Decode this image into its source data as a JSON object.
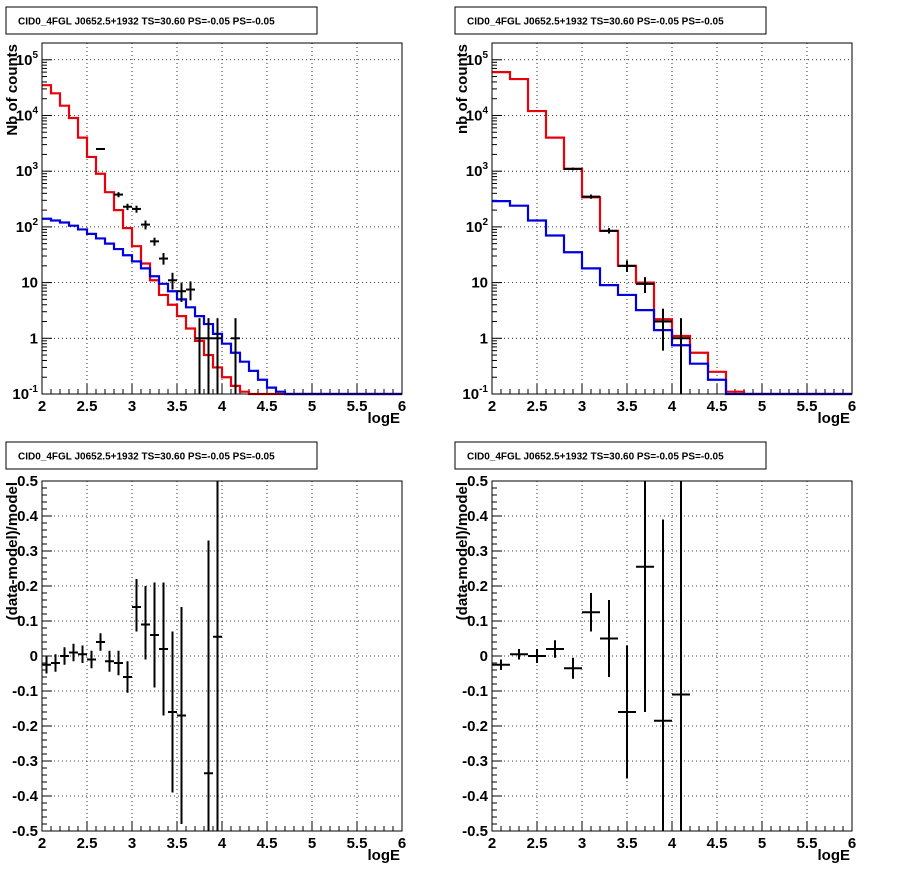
{
  "chart_data": [
    {
      "type": "line",
      "panel": "top-left",
      "title": "CID0_4FGL J0652.5+1932 TS=30.60 PS=-0.05 PS=-0.05",
      "xlabel": "logE",
      "ylabel": "Nb of counts",
      "xlim": [
        2,
        6
      ],
      "ylim": [
        0.1,
        200000
      ],
      "yscale": "log",
      "grid": true,
      "x_ticks": [
        "2",
        "2.5",
        "3",
        "3.5",
        "4",
        "4.5",
        "5",
        "5.5",
        "6"
      ],
      "y_ticks": [
        {
          "value": 0.1,
          "base": "10",
          "exp": "-1"
        },
        {
          "value": 1,
          "base": "1",
          "exp": ""
        },
        {
          "value": 10,
          "base": "10",
          "exp": ""
        },
        {
          "value": 100,
          "base": "10",
          "exp": "2"
        },
        {
          "value": 1000,
          "base": "10",
          "exp": "3"
        },
        {
          "value": 10000,
          "base": "10",
          "exp": "4"
        },
        {
          "value": 100000,
          "base": "10",
          "exp": "5"
        }
      ],
      "bin_edges": [
        2.0,
        2.1,
        2.2,
        2.3,
        2.4,
        2.5,
        2.6,
        2.7,
        2.8,
        2.9,
        3.0,
        3.1,
        3.2,
        3.3,
        3.4,
        3.5,
        3.6,
        3.7,
        3.8,
        3.9,
        4.0,
        4.1,
        4.2,
        4.3,
        4.4,
        4.5,
        4.6,
        4.7,
        4.8,
        4.9,
        5.0,
        5.1,
        5.2,
        5.3,
        5.4,
        5.5,
        5.6,
        5.7,
        5.8,
        5.9,
        6.0
      ],
      "series": [
        {
          "kind": "hist",
          "color": "#e8000b",
          "values": [
            35000,
            25000,
            15000,
            9000,
            4000,
            1800,
            900,
            420,
            200,
            95,
            45,
            22,
            11,
            6,
            4,
            2.5,
            1.5,
            0.9,
            0.5,
            0.3,
            0.2,
            0.14,
            0.11,
            0.1,
            0.1,
            0.1,
            0.1,
            0.1,
            0.1,
            0.1,
            0.1,
            0.1,
            0.1,
            0.1,
            0.1,
            0.1,
            0.1,
            0.1,
            0.1,
            0.1
          ]
        },
        {
          "kind": "hist",
          "color": "#0000e0",
          "values": [
            140,
            130,
            120,
            105,
            90,
            75,
            62,
            50,
            40,
            31,
            24,
            18,
            13,
            9.5,
            7,
            5,
            3.6,
            2.5,
            1.8,
            1.2,
            0.8,
            0.55,
            0.38,
            0.26,
            0.18,
            0.13,
            0.11,
            0.1,
            0.1,
            0.1,
            0.1,
            0.1,
            0.1,
            0.1,
            0.1,
            0.1,
            0.1,
            0.1,
            0.1,
            0.1
          ]
        },
        {
          "kind": "points",
          "color": "#000000",
          "points": [
            {
              "x": 2.65,
              "y": 2500,
              "dx": 0.05,
              "lo": 2400,
              "hi": 2600
            },
            {
              "x": 2.85,
              "y": 380,
              "dx": 0.05,
              "lo": 340,
              "hi": 420
            },
            {
              "x": 2.95,
              "y": 230,
              "dx": 0.05,
              "lo": 200,
              "hi": 260
            },
            {
              "x": 3.05,
              "y": 210,
              "dx": 0.05,
              "lo": 180,
              "hi": 240
            },
            {
              "x": 3.15,
              "y": 110,
              "dx": 0.05,
              "lo": 90,
              "hi": 130
            },
            {
              "x": 3.25,
              "y": 55,
              "dx": 0.05,
              "lo": 46,
              "hi": 64
            },
            {
              "x": 3.35,
              "y": 27,
              "dx": 0.05,
              "lo": 21,
              "hi": 34
            },
            {
              "x": 3.45,
              "y": 11,
              "dx": 0.05,
              "lo": 7.5,
              "hi": 15
            },
            {
              "x": 3.55,
              "y": 7,
              "dx": 0.05,
              "lo": 4.5,
              "hi": 10
            },
            {
              "x": 3.65,
              "y": 7.5,
              "dx": 0.05,
              "lo": 4.8,
              "hi": 10.5
            },
            {
              "x": 3.75,
              "y": 1,
              "dx": 0.05,
              "lo": 0.1,
              "hi": 2.3
            },
            {
              "x": 3.85,
              "y": 1,
              "dx": 0.05,
              "lo": 0.1,
              "hi": 2.3
            },
            {
              "x": 3.95,
              "y": 1,
              "dx": 0.05,
              "lo": 0.1,
              "hi": 2.3
            },
            {
              "x": 4.15,
              "y": 1,
              "dx": 0.05,
              "lo": 0.1,
              "hi": 2.3
            }
          ]
        }
      ]
    },
    {
      "type": "line",
      "panel": "top-right",
      "title": "CID0_4FGL J0652.5+1932 TS=30.60 PS=-0.05 PS=-0.05",
      "xlabel": "logE",
      "ylabel": "nb of counts",
      "xlim": [
        2,
        6
      ],
      "ylim": [
        0.1,
        200000
      ],
      "yscale": "log",
      "grid": true,
      "x_ticks": [
        "2",
        "2.5",
        "3",
        "3.5",
        "4",
        "4.5",
        "5",
        "5.5",
        "6"
      ],
      "y_ticks": [
        {
          "value": 0.1,
          "base": "10",
          "exp": "-1"
        },
        {
          "value": 1,
          "base": "1",
          "exp": ""
        },
        {
          "value": 10,
          "base": "10",
          "exp": ""
        },
        {
          "value": 100,
          "base": "10",
          "exp": "2"
        },
        {
          "value": 1000,
          "base": "10",
          "exp": "3"
        },
        {
          "value": 10000,
          "base": "10",
          "exp": "4"
        },
        {
          "value": 100000,
          "base": "10",
          "exp": "5"
        }
      ],
      "bin_edges": [
        2.0,
        2.2,
        2.4,
        2.6,
        2.8,
        3.0,
        3.2,
        3.4,
        3.6,
        3.8,
        4.0,
        4.2,
        4.4,
        4.6,
        4.8,
        5.0,
        5.2,
        5.4,
        5.6,
        5.8,
        6.0
      ],
      "series": [
        {
          "kind": "hist",
          "color": "#e8000b",
          "values": [
            60000,
            45000,
            12000,
            4000,
            1100,
            340,
            85,
            20,
            10,
            2.2,
            1.1,
            0.55,
            0.25,
            0.11,
            0.1,
            0.1,
            0.1,
            0.1,
            0.1,
            0.1
          ]
        },
        {
          "kind": "hist",
          "color": "#0000e0",
          "values": [
            290,
            240,
            130,
            70,
            35,
            18,
            9,
            6,
            3.2,
            1.4,
            0.75,
            0.35,
            0.18,
            0.1,
            0.1,
            0.1,
            0.1,
            0.1,
            0.1,
            0.1
          ]
        },
        {
          "kind": "points",
          "color": "#000000",
          "points": [
            {
              "x": 2.9,
              "y": 1100,
              "dx": 0.1,
              "lo": 1040,
              "hi": 1160
            },
            {
              "x": 3.1,
              "y": 350,
              "dx": 0.1,
              "lo": 320,
              "hi": 380
            },
            {
              "x": 3.3,
              "y": 85,
              "dx": 0.1,
              "lo": 76,
              "hi": 95
            },
            {
              "x": 3.5,
              "y": 20,
              "dx": 0.1,
              "lo": 15.5,
              "hi": 25
            },
            {
              "x": 3.7,
              "y": 9.5,
              "dx": 0.1,
              "lo": 6.5,
              "hi": 12.5
            },
            {
              "x": 3.9,
              "y": 2,
              "dx": 0.1,
              "lo": 0.6,
              "hi": 3.4
            },
            {
              "x": 4.1,
              "y": 1,
              "dx": 0.1,
              "lo": 0.1,
              "hi": 2.3
            }
          ]
        }
      ]
    },
    {
      "type": "scatter",
      "panel": "bottom-left",
      "title": "CID0_4FGL J0652.5+1932 TS=30.60 PS=-0.05 PS=-0.05",
      "xlabel": "logE",
      "ylabel": "(data-model)/model",
      "xlim": [
        2,
        6
      ],
      "ylim": [
        -0.5,
        0.5
      ],
      "yscale": "linear",
      "grid": true,
      "x_ticks": [
        "2",
        "2.5",
        "3",
        "3.5",
        "4",
        "4.5",
        "5",
        "5.5",
        "6"
      ],
      "y_ticks": [
        "-0.5",
        "-0.4",
        "-0.3",
        "-0.2",
        "-0.1",
        "0",
        "0.1",
        "0.2",
        "0.3",
        "0.4",
        "0.5"
      ],
      "series": [
        {
          "kind": "points",
          "color": "#000000",
          "points": [
            {
              "x": 2.05,
              "y": -0.025,
              "dx": 0.05,
              "lo": -0.05,
              "hi": 0.0
            },
            {
              "x": 2.15,
              "y": -0.02,
              "dx": 0.05,
              "lo": -0.045,
              "hi": 0.005
            },
            {
              "x": 2.25,
              "y": 0.0,
              "dx": 0.05,
              "lo": -0.025,
              "hi": 0.025
            },
            {
              "x": 2.35,
              "y": 0.01,
              "dx": 0.05,
              "lo": -0.015,
              "hi": 0.035
            },
            {
              "x": 2.45,
              "y": 0.005,
              "dx": 0.05,
              "lo": -0.02,
              "hi": 0.03
            },
            {
              "x": 2.55,
              "y": -0.01,
              "dx": 0.05,
              "lo": -0.035,
              "hi": 0.015
            },
            {
              "x": 2.65,
              "y": 0.04,
              "dx": 0.05,
              "lo": 0.015,
              "hi": 0.065
            },
            {
              "x": 2.75,
              "y": -0.015,
              "dx": 0.05,
              "lo": -0.045,
              "hi": 0.015
            },
            {
              "x": 2.85,
              "y": -0.02,
              "dx": 0.05,
              "lo": -0.055,
              "hi": 0.015
            },
            {
              "x": 2.95,
              "y": -0.06,
              "dx": 0.05,
              "lo": -0.105,
              "hi": -0.015
            },
            {
              "x": 3.05,
              "y": 0.14,
              "dx": 0.05,
              "lo": 0.07,
              "hi": 0.22
            },
            {
              "x": 3.15,
              "y": 0.09,
              "dx": 0.05,
              "lo": -0.01,
              "hi": 0.2
            },
            {
              "x": 3.25,
              "y": 0.06,
              "dx": 0.05,
              "lo": -0.09,
              "hi": 0.21
            },
            {
              "x": 3.35,
              "y": 0.02,
              "dx": 0.05,
              "lo": -0.17,
              "hi": 0.21
            },
            {
              "x": 3.45,
              "y": -0.16,
              "dx": 0.05,
              "lo": -0.39,
              "hi": 0.07
            },
            {
              "x": 3.55,
              "y": -0.17,
              "dx": 0.05,
              "lo": -0.48,
              "hi": 0.14
            },
            {
              "x": 3.85,
              "y": -0.335,
              "dx": 0.05,
              "lo": -0.5,
              "hi": 0.33
            },
            {
              "x": 3.95,
              "y": 0.055,
              "dx": 0.05,
              "lo": -0.5,
              "hi": 0.5
            }
          ]
        }
      ]
    },
    {
      "type": "scatter",
      "panel": "bottom-right",
      "title": "CID0_4FGL J0652.5+1932 TS=30.60 PS=-0.05 PS=-0.05",
      "xlabel": "logE",
      "ylabel": "(data-model)/model",
      "xlim": [
        2,
        6
      ],
      "ylim": [
        -0.5,
        0.5
      ],
      "yscale": "linear",
      "grid": true,
      "x_ticks": [
        "2",
        "2.5",
        "3",
        "3.5",
        "4",
        "4.5",
        "5",
        "5.5",
        "6"
      ],
      "y_ticks": [
        "-0.5",
        "-0.4",
        "-0.3",
        "-0.2",
        "-0.1",
        "0",
        "0.1",
        "0.2",
        "0.3",
        "0.4",
        "0.5"
      ],
      "series": [
        {
          "kind": "points",
          "color": "#000000",
          "points": [
            {
              "x": 2.1,
              "y": -0.025,
              "dx": 0.1,
              "lo": -0.04,
              "hi": -0.01
            },
            {
              "x": 2.3,
              "y": 0.005,
              "dx": 0.1,
              "lo": -0.01,
              "hi": 0.02
            },
            {
              "x": 2.5,
              "y": 0.0,
              "dx": 0.1,
              "lo": -0.02,
              "hi": 0.02
            },
            {
              "x": 2.7,
              "y": 0.02,
              "dx": 0.1,
              "lo": -0.005,
              "hi": 0.045
            },
            {
              "x": 2.9,
              "y": -0.035,
              "dx": 0.1,
              "lo": -0.065,
              "hi": -0.005
            },
            {
              "x": 3.1,
              "y": 0.125,
              "dx": 0.1,
              "lo": 0.07,
              "hi": 0.18
            },
            {
              "x": 3.3,
              "y": 0.05,
              "dx": 0.1,
              "lo": -0.06,
              "hi": 0.16
            },
            {
              "x": 3.5,
              "y": -0.16,
              "dx": 0.1,
              "lo": -0.35,
              "hi": 0.03
            },
            {
              "x": 3.7,
              "y": 0.255,
              "dx": 0.1,
              "lo": -0.16,
              "hi": 0.5
            },
            {
              "x": 3.9,
              "y": -0.185,
              "dx": 0.1,
              "lo": -0.5,
              "hi": 0.39
            },
            {
              "x": 4.1,
              "y": -0.11,
              "dx": 0.1,
              "lo": -0.5,
              "hi": 0.5
            }
          ]
        }
      ]
    }
  ]
}
